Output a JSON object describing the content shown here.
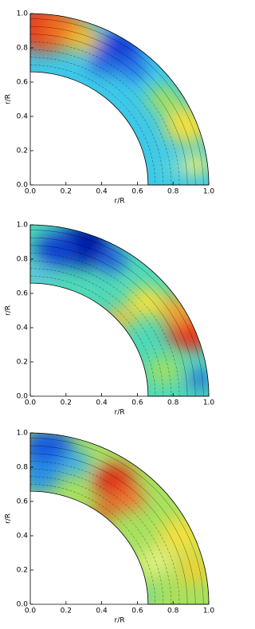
{
  "chart_data": [
    {
      "type": "contour",
      "xlabel": "r/R",
      "ylabel": "r/R",
      "xlim": [
        0,
        1
      ],
      "ylim": [
        0,
        1
      ],
      "xticks": [
        {
          "value": 0,
          "label": "0.0"
        },
        0.2,
        0.4,
        0.6,
        0.8,
        {
          "value": 1,
          "label": "1.0"
        }
      ],
      "yticks": [
        {
          "value": 0,
          "label": "0.0"
        },
        0.2,
        0.4,
        0.6,
        0.8,
        {
          "value": 1,
          "label": "1.0"
        }
      ]
    },
    {
      "type": "contour",
      "xlabel": "r/R",
      "ylabel": "r/R",
      "xlim": [
        0,
        1
      ],
      "ylim": [
        0,
        1
      ],
      "xticks": [
        {
          "value": 0,
          "label": "0.0"
        },
        0.2,
        0.4,
        0.6,
        0.8,
        {
          "value": 1,
          "label": "1.0"
        }
      ],
      "yticks": [
        {
          "value": 0,
          "label": "0.0"
        },
        0.2,
        0.4,
        0.6,
        0.8,
        {
          "value": 1,
          "label": "1.0"
        }
      ]
    },
    {
      "type": "contour",
      "xlabel": "r/R",
      "ylabel": "r/R",
      "xlim": [
        0,
        1
      ],
      "ylim": [
        0,
        1
      ],
      "xticks": [
        {
          "value": 0,
          "label": "0.0"
        },
        0.2,
        0.4,
        0.6,
        0.8,
        {
          "value": 1,
          "label": "1.0"
        }
      ],
      "yticks": [
        {
          "value": 0,
          "label": "0.0"
        },
        0.2,
        0.4,
        0.6,
        0.8,
        {
          "value": 1,
          "label": "1.0"
        }
      ]
    }
  ]
}
